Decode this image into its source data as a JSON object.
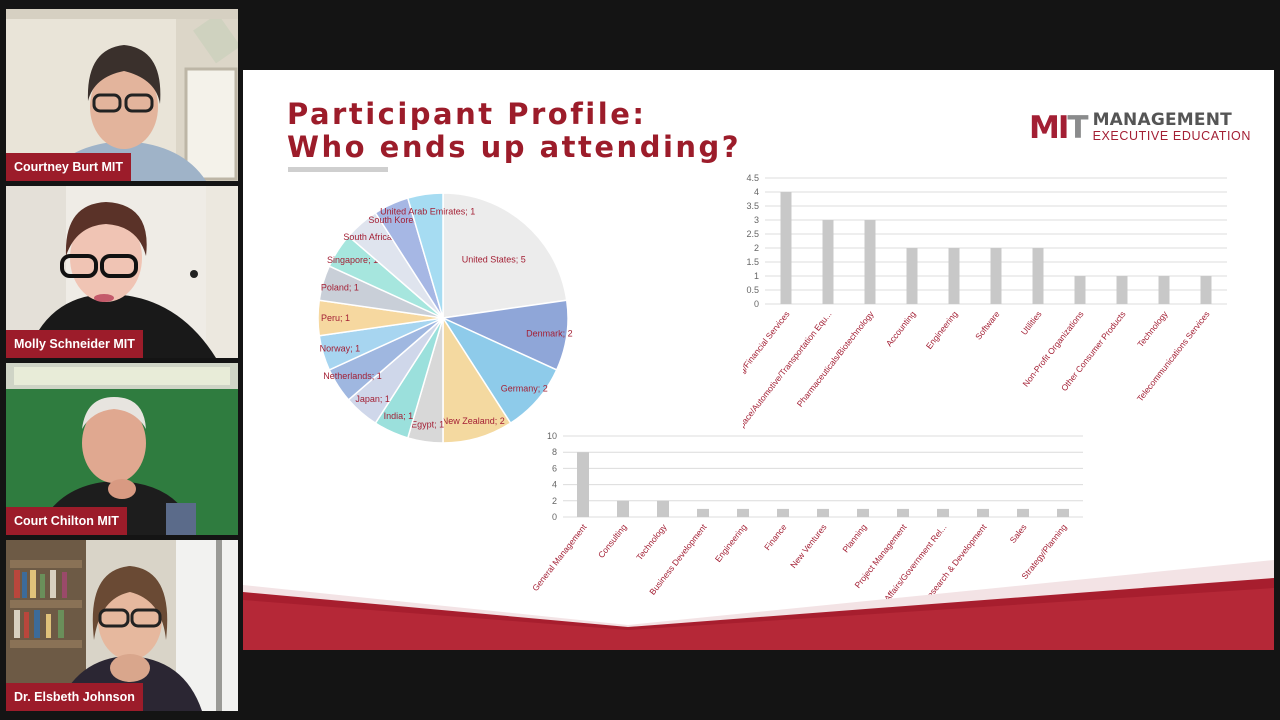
{
  "participants": [
    {
      "name": "Courtney Burt MIT"
    },
    {
      "name": "Molly Schneider MIT"
    },
    {
      "name": "Court Chilton MIT"
    },
    {
      "name": "Dr. Elsbeth Johnson"
    }
  ],
  "slide": {
    "title_line1": "Participant Profile:",
    "title_line2": "Who ends up attending?",
    "logo_mark_m": "M",
    "logo_mark_i": "I",
    "logo_mark_t": "T",
    "logo_line1": "MANAGEMENT",
    "logo_line2": "EXECUTIVE EDUCATION"
  },
  "colors": {
    "accent": "#9c1c2a",
    "bar": "#c8c8c8",
    "label": "#a31f34"
  },
  "chart_data": [
    {
      "type": "pie",
      "categories": [
        "United States",
        "Denmark",
        "Germany",
        "New Zealand",
        "Egypt",
        "India",
        "Japan",
        "Netherlands",
        "Norway",
        "Peru",
        "Poland",
        "Singapore",
        "South Africa",
        "South Korea",
        "United Arab Emirates"
      ],
      "values": [
        5,
        2,
        2,
        2,
        1,
        1,
        1,
        1,
        1,
        1,
        1,
        1,
        1,
        1,
        1
      ],
      "labels": [
        "United States; 5",
        "Denmark; 2",
        "Germany; 2",
        "New Zealand; 2",
        "Egypt; 1",
        "India; 1",
        "Japan; 1",
        "Netherlands; 1",
        "Norway; 1",
        "Peru; 1",
        "Poland; 1",
        "Singapore; 1",
        "South Africa; 1",
        "South Korea; 1",
        "United Arab Emirates; 1"
      ],
      "colors": [
        "#ececec",
        "#8fa6d8",
        "#8ecbea",
        "#f4d9a0",
        "#d8d8d8",
        "#9be0dc",
        "#cfd7ea",
        "#9fb7e0",
        "#a7d5f0",
        "#f6d8a0",
        "#c9cfd8",
        "#a6e6de",
        "#dfe4ee",
        "#a6b7e4",
        "#a6dcf2"
      ]
    },
    {
      "type": "bar",
      "categories": [
        "Banking/Financial Services",
        "Aerospace/Automotive/Transportation Equ...",
        "Pharmaceuticals/Biotechnology",
        "Accounting",
        "Engineering",
        "Software",
        "Utilities",
        "Non-Profit Organizations",
        "Other Consumer Products",
        "Technology",
        "Telecommunications Services"
      ],
      "values": [
        4,
        3,
        3,
        2,
        2,
        2,
        2,
        1,
        1,
        1,
        1
      ],
      "ylim": [
        0,
        4.5
      ],
      "yticks": [
        "0",
        "0.5",
        "1",
        "1.5",
        "2",
        "2.5",
        "3",
        "3.5",
        "4",
        "4.5"
      ],
      "grid": true
    },
    {
      "type": "bar",
      "categories": [
        "General Management",
        "Consulting",
        "Technology",
        "Business Development",
        "Engineering",
        "Finance",
        "New Ventures",
        "Planning",
        "Project Management",
        "Public Affairs/Government Rel...",
        "Research & Development",
        "Sales",
        "Strategy/Planning"
      ],
      "values": [
        8,
        2,
        2,
        1,
        1,
        1,
        1,
        1,
        1,
        1,
        1,
        1,
        1
      ],
      "ylim": [
        0,
        10
      ],
      "yticks": [
        "0",
        "2",
        "4",
        "6",
        "8",
        "10"
      ],
      "grid": true
    }
  ]
}
